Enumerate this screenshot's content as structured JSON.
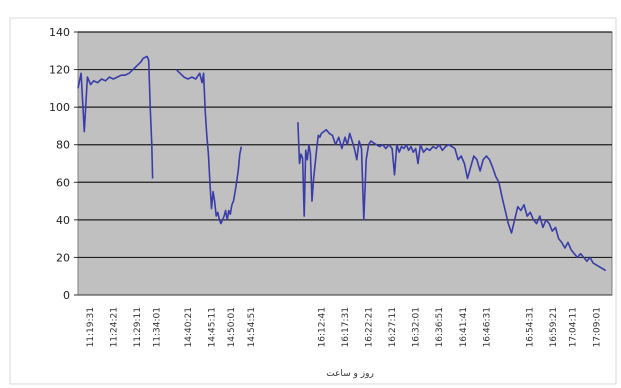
{
  "header": {
    "partial_text": ""
  },
  "chart_data": {
    "type": "line",
    "title": "",
    "xlabel": "روز و ساعت",
    "ylabel": "",
    "ylim": [
      0,
      140
    ],
    "yticks": [
      0,
      20,
      40,
      60,
      80,
      100,
      120,
      140
    ],
    "grid": "horizontal",
    "legend": "none",
    "x_tick_labels": [
      "11:19:31",
      "11:24:21",
      "11:29:11",
      "11:34:01",
      "14:40:21",
      "14:45:11",
      "14:50:01",
      "14:54:51",
      "16:12:41",
      "16:17:31",
      "16:22:21",
      "16:27:11",
      "16:32:01",
      "16:36:51",
      "16:41:41",
      "16:46:31",
      "16:54:31",
      "16:59:21",
      "17:04:11",
      "17:09:01"
    ],
    "series": [
      {
        "name": "",
        "color": "#3a3ca8",
        "segments": [
          {
            "x": [
              0,
              0.4,
              0.8,
              1.2,
              1.6,
              2.0,
              2.5,
              3.0,
              3.5,
              4.0,
              4.5,
              5.0,
              5.5,
              6.0,
              6.5,
              7.0,
              7.5,
              8.0,
              8.3,
              8.8,
              9.0,
              9.2,
              9.4,
              9.5
            ],
            "y": [
              110,
              118,
              87,
              116,
              112,
              114,
              113,
              115,
              114,
              116,
              115,
              116,
              117,
              117,
              118,
              120,
              122,
              124,
              126,
              127,
              125,
              100,
              80,
              62
            ]
          },
          {
            "x": [
              12.5,
              13.0,
              13.5,
              14.0,
              14.5,
              15.0,
              15.5,
              15.8,
              16.0,
              16.2,
              16.4,
              16.6,
              16.8,
              17.0,
              17.2,
              17.4,
              17.6,
              17.8,
              18.0,
              18.2,
              18.4,
              18.6,
              18.8,
              19.0,
              19.2,
              19.4,
              19.6,
              19.8,
              20.0,
              20.2,
              20.4,
              20.6,
              20.8
            ],
            "y": [
              120,
              118,
              116,
              115,
              116,
              115,
              118,
              113,
              118,
              98,
              85,
              75,
              60,
              46,
              55,
              50,
              42,
              44,
              40,
              38,
              40,
              42,
              45,
              40,
              45,
              43,
              48,
              50,
              55,
              60,
              66,
              75,
              79
            ]
          },
          {
            "x": [
              28.0,
              28.2,
              28.4,
              28.6,
              28.8,
              29.0,
              29.2,
              29.4,
              29.6,
              29.8,
              30.0,
              30.2,
              30.4,
              30.6,
              30.8,
              31.0,
              31.3,
              31.6,
              32.0,
              32.4,
              32.8,
              33.2,
              33.6,
              34.0,
              34.3,
              34.6,
              34.9,
              35.2,
              35.5,
              35.8,
              36.1,
              36.4,
              36.7,
              37.0,
              37.3,
              37.6,
              38.0,
              38.4,
              38.8,
              39.2,
              39.6,
              40.0,
              40.3,
              40.6,
              40.9,
              41.2,
              41.5,
              41.8,
              42.1,
              42.4,
              42.7,
              43.0,
              43.3,
              43.6,
              44.0,
              44.4,
              44.8,
              45.2,
              45.6,
              46.0,
              46.4,
              46.8,
              47.2,
              47.6,
              48.0,
              48.4,
              48.8,
              49.2,
              49.6,
              50.0,
              50.4,
              50.8,
              51.2,
              51.6,
              52.0,
              52.4,
              52.8,
              53.2,
              53.6,
              54.0,
              54.4,
              54.8,
              55.2,
              55.6,
              56.0,
              56.4,
              56.8,
              57.2,
              57.6,
              58.0,
              58.4,
              58.8,
              59.2,
              59.6,
              60.0,
              60.4,
              60.8,
              61.2,
              61.6,
              62.0,
              62.4,
              62.8,
              63.2,
              63.6,
              64.0,
              64.4,
              64.8,
              65.2,
              65.6,
              66.0,
              66.4,
              66.8,
              67.2
            ],
            "y": [
              92,
              70,
              75,
              73,
              42,
              77,
              72,
              80,
              75,
              50,
              62,
              70,
              78,
              85,
              84,
              86,
              87,
              88,
              86,
              85,
              80,
              84,
              78,
              84,
              80,
              86,
              82,
              78,
              72,
              82,
              78,
              40,
              72,
              80,
              82,
              81,
              80,
              79,
              80,
              78,
              80,
              78,
              64,
              80,
              76,
              79,
              78,
              80,
              77,
              79,
              76,
              78,
              70,
              80,
              76,
              78,
              77,
              79,
              78,
              80,
              77,
              79,
              80,
              79,
              78,
              72,
              74,
              70,
              62,
              68,
              74,
              72,
              66,
              72,
              74,
              72,
              68,
              63,
              60,
              52,
              45,
              38,
              33,
              40,
              47,
              45,
              48,
              42,
              44,
              40,
              38,
              42,
              36,
              40,
              38,
              34,
              36,
              30,
              28,
              25,
              28,
              24,
              22,
              20,
              22,
              20,
              18,
              20,
              17,
              16,
              15,
              14,
              13
            ]
          }
        ]
      }
    ]
  }
}
